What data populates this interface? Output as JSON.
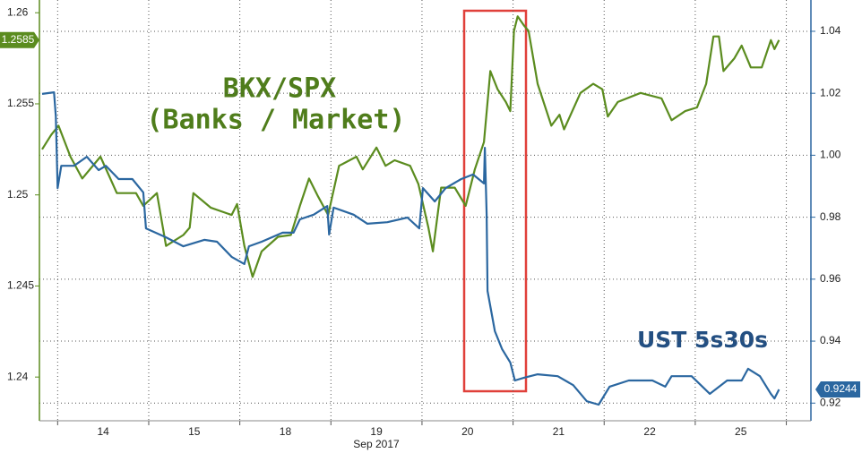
{
  "chart_data": {
    "type": "line",
    "xlabel": "Sep 2017",
    "xlim": [
      -0.7,
      7.77
    ],
    "xticks": [
      {
        "value": 0,
        "label": "14"
      },
      {
        "value": 1,
        "label": "15"
      },
      {
        "value": 2,
        "label": "18"
      },
      {
        "value": 3,
        "label": "19"
      },
      {
        "value": 4,
        "label": "20"
      },
      {
        "value": 5,
        "label": "21"
      },
      {
        "value": 6,
        "label": "22"
      },
      {
        "value": 7,
        "label": "25"
      }
    ],
    "xminorticks": [
      -0.5,
      0.5,
      1.5,
      2.5,
      3.5,
      4.5,
      5.5,
      6.5,
      7.5
    ],
    "ylim": [
      1.2376,
      1.2607
    ],
    "yticks": [
      1.26,
      1.255,
      1.25,
      1.245,
      1.24
    ],
    "y2lim": [
      0.9143,
      1.0501
    ],
    "y2ticks": [
      1.04,
      1.02,
      {
        "value": 1,
        "label": "1.00"
      },
      0.98,
      0.96,
      0.94,
      0.92
    ],
    "grid": true,
    "annotations": [
      "BKX/SPX",
      "(Banks / Market)",
      "UST 5s30s"
    ],
    "series": [
      {
        "name": "BKX/SPX",
        "color": "#5b8c1f",
        "axis": "y",
        "x": [
          -0.67,
          -0.57,
          -0.49,
          -0.36,
          -0.23,
          -0.03,
          0.15,
          0.36,
          0.44,
          0.59,
          0.69,
          0.88,
          0.95,
          0.99,
          1.18,
          1.41,
          1.47,
          1.55,
          1.64,
          1.74,
          1.92,
          2.06,
          2.16,
          2.26,
          2.36,
          2.47,
          2.59,
          2.78,
          2.85,
          3.0,
          3.1,
          3.2,
          3.37,
          3.46,
          3.57,
          3.62,
          3.71,
          3.86,
          3.98,
          4.08,
          4.18,
          4.25,
          4.33,
          4.42,
          4.47,
          4.51,
          4.55,
          4.62,
          4.67,
          4.77,
          4.92,
          5.01,
          5.06,
          5.24,
          5.38,
          5.48,
          5.54,
          5.65,
          5.9,
          6.13,
          6.24,
          6.39,
          6.52,
          6.62,
          6.7,
          6.76,
          6.81,
          6.93,
          7.01,
          7.11,
          7.23,
          7.33,
          7.37,
          7.42
        ],
        "values": [
          1.2525,
          1.2533,
          1.2538,
          1.2521,
          1.2509,
          1.2521,
          1.2501,
          1.2501,
          1.2494,
          1.2501,
          1.2472,
          1.2478,
          1.2482,
          1.2501,
          1.2493,
          1.2489,
          1.2495,
          1.2472,
          1.2455,
          1.2469,
          1.2477,
          1.2478,
          1.2494,
          1.2509,
          1.2499,
          1.2489,
          1.2516,
          1.2521,
          1.2514,
          1.2526,
          1.2516,
          1.2519,
          1.2516,
          1.2506,
          1.2482,
          1.2469,
          1.2504,
          1.2504,
          1.2494,
          1.2514,
          1.2529,
          1.2568,
          1.2558,
          1.2551,
          1.2546,
          1.259,
          1.2598,
          1.2593,
          1.259,
          1.2561,
          1.2538,
          1.2544,
          1.2536,
          1.2556,
          1.2561,
          1.2558,
          1.2543,
          1.2551,
          1.2556,
          1.2553,
          1.2541,
          1.2546,
          1.2548,
          1.2561,
          1.2587,
          1.2587,
          1.2568,
          1.2575,
          1.2582,
          1.257,
          1.257,
          1.2585,
          1.258,
          1.2585
        ]
      },
      {
        "name": "UST 5s30s",
        "color": "#2b67a0",
        "axis": "y2",
        "x": [
          -0.67,
          -0.54,
          -0.52,
          -0.5,
          -0.46,
          -0.32,
          -0.18,
          -0.05,
          0.03,
          0.17,
          0.32,
          0.44,
          0.47,
          0.69,
          0.88,
          1.11,
          1.25,
          1.41,
          1.55,
          1.6,
          1.74,
          1.97,
          2.09,
          2.16,
          2.31,
          2.46,
          2.48,
          2.53,
          2.75,
          2.9,
          3.12,
          3.34,
          3.47,
          3.51,
          3.64,
          3.76,
          3.93,
          4.06,
          4.18,
          4.19,
          4.21,
          4.22,
          4.3,
          4.38,
          4.47,
          4.52,
          4.62,
          4.77,
          4.99,
          5.16,
          5.31,
          5.44,
          5.56,
          5.77,
          6.03,
          6.17,
          6.24,
          6.46,
          6.66,
          6.85,
          7.01,
          7.08,
          7.21,
          7.33,
          7.37,
          7.42
        ],
        "values": [
          1.0198,
          1.0203,
          1.0125,
          0.9894,
          0.9966,
          0.9966,
          0.9995,
          0.9952,
          0.9966,
          0.9923,
          0.9923,
          0.988,
          0.9764,
          0.9735,
          0.9706,
          0.9727,
          0.9721,
          0.9672,
          0.9649,
          0.9706,
          0.9721,
          0.975,
          0.975,
          0.9793,
          0.9808,
          0.9836,
          0.9744,
          0.9831,
          0.9808,
          0.9779,
          0.9784,
          0.9799,
          0.9764,
          0.9894,
          0.9851,
          0.9894,
          0.9923,
          0.9938,
          0.9909,
          1.0024,
          0.9808,
          0.9562,
          0.9432,
          0.9374,
          0.9331,
          0.9273,
          0.9282,
          0.9293,
          0.9287,
          0.9258,
          0.9206,
          0.9195,
          0.9253,
          0.9273,
          0.9273,
          0.9253,
          0.9287,
          0.9287,
          0.923,
          0.9273,
          0.9273,
          0.9311,
          0.9287,
          0.923,
          0.9215,
          0.9244
        ]
      }
    ]
  }
}
